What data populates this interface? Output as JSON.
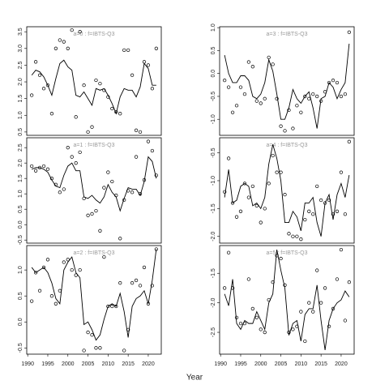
{
  "xlabel": "Year",
  "chart_data": [
    {
      "type": "scatter-line",
      "title": "a=0  :  f=IBTS-Q3",
      "x": [
        1991,
        1992,
        1993,
        1994,
        1995,
        1996,
        1997,
        1998,
        1999,
        2000,
        2001,
        2002,
        2003,
        2004,
        2005,
        2006,
        2007,
        2008,
        2009,
        2010,
        2011,
        2012,
        2013,
        2014,
        2015,
        2016,
        2017,
        2018,
        2019,
        2020,
        2021,
        2022
      ],
      "xlim": [
        1989.76,
        2023.24
      ],
      "ylim": [
        0.4,
        3.65
      ],
      "yticks": [
        0.5,
        {
          "value": 1,
          "label": "1.0"
        },
        1.5,
        {
          "value": 2,
          "label": "2.0"
        },
        2.5,
        {
          "value": 3,
          "label": "3.0"
        },
        3.5
      ],
      "series": [
        {
          "type": "points",
          "color": "#000000",
          "values": [
            1.6,
            2.6,
            2.2,
            1.8,
            1.9,
            1.05,
            3.0,
            3.25,
            3.2,
            3.0,
            3.55,
            0.95,
            3.5,
            1.9,
            0.5,
            0.65,
            2.05,
            1.95,
            1.75,
            1.55,
            1.2,
            1.1,
            1.05,
            2.95,
            2.95,
            2.2,
            0.55,
            0.5,
            2.6,
            2.5,
            1.8,
            3.0
          ]
        },
        {
          "type": "line",
          "color": "#000000",
          "values": [
            2.2,
            2.35,
            2.3,
            2.15,
            1.9,
            1.6,
            2.1,
            2.55,
            2.65,
            2.45,
            2.35,
            1.6,
            1.55,
            1.7,
            1.5,
            1.3,
            1.8,
            1.75,
            1.8,
            1.6,
            1.35,
            1.05,
            1.55,
            1.8,
            1.75,
            1.75,
            1.55,
            1.85,
            2.55,
            2.4,
            1.9,
            1.9
          ]
        }
      ]
    },
    {
      "type": "scatter-line",
      "title": "a=3  :  f=IBTS-Q3",
      "x": [
        1991,
        1992,
        1993,
        1994,
        1995,
        1996,
        1997,
        1998,
        1999,
        2000,
        2001,
        2002,
        2003,
        2004,
        2005,
        2006,
        2007,
        2008,
        2009,
        2010,
        2011,
        2012,
        2013,
        2014,
        2015,
        2016,
        2017,
        2018,
        2019,
        2020,
        2021,
        2022
      ],
      "xlim": [
        1989.76,
        2023.24
      ],
      "ylim": [
        -1.35,
        1.02
      ],
      "yticks": [
        {
          "value": -1,
          "label": "-1.0"
        },
        -0.5,
        {
          "value": 0,
          "label": "0.0"
        },
        0.5,
        {
          "value": 1,
          "label": "1.0"
        }
      ],
      "series": [
        {
          "type": "points",
          "color": "#000000",
          "values": [
            -0.15,
            -0.3,
            -0.85,
            -0.7,
            -0.3,
            -0.45,
            0.25,
            0.15,
            -0.6,
            -0.65,
            -0.55,
            0.35,
            0.2,
            -0.55,
            -1.15,
            -1.25,
            -0.8,
            -1.2,
            -0.7,
            -0.85,
            -0.5,
            -0.55,
            -0.45,
            -0.5,
            -0.6,
            -0.4,
            -0.2,
            -0.15,
            -0.2,
            -0.5,
            -0.45,
            0.9
          ]
        },
        {
          "type": "line",
          "color": "#000000",
          "values": [
            0.4,
            0.0,
            -0.2,
            -0.2,
            -0.05,
            -0.05,
            -0.15,
            -0.5,
            -0.55,
            -0.45,
            -0.2,
            0.3,
            0.05,
            -0.45,
            -1.0,
            -1.0,
            -0.75,
            -0.35,
            -0.55,
            -0.65,
            -0.5,
            -0.4,
            -0.75,
            -1.2,
            -0.55,
            -0.5,
            -0.2,
            -0.3,
            -0.55,
            -0.35,
            -0.2,
            0.65
          ]
        }
      ]
    },
    {
      "type": "scatter-line",
      "title": "a=1  :  f=IBTS-Q3",
      "x": [
        1991,
        1992,
        1993,
        1994,
        1995,
        1996,
        1997,
        1998,
        1999,
        2000,
        2001,
        2002,
        2003,
        2004,
        2005,
        2006,
        2007,
        2008,
        2009,
        2010,
        2011,
        2012,
        2013,
        2014,
        2015,
        2016,
        2017,
        2018,
        2019,
        2020,
        2021,
        2022
      ],
      "xlim": [
        1989.76,
        2023.24
      ],
      "ylim": [
        -0.6,
        2.82
      ],
      "yticks": [
        -0.5,
        {
          "value": 0,
          "label": "0.0"
        },
        0.5,
        {
          "value": 1,
          "label": "1.0"
        },
        1.5,
        {
          "value": 2,
          "label": "2.0"
        },
        2.5
      ],
      "series": [
        {
          "type": "points",
          "color": "#000000",
          "values": [
            1.9,
            1.75,
            1.85,
            1.9,
            1.8,
            1.5,
            1.3,
            1.05,
            1.15,
            2.5,
            2.2,
            2.0,
            2.35,
            0.85,
            0.3,
            0.35,
            0.45,
            -0.2,
            1.2,
            1.7,
            1.4,
            0.95,
            -0.45,
            0.8,
            1.1,
            1.05,
            2.2,
            1.0,
            1.45,
            2.7,
            2.4,
            1.6
          ]
        },
        {
          "type": "line",
          "color": "#000000",
          "values": [
            1.8,
            1.85,
            1.85,
            1.8,
            1.7,
            1.45,
            1.25,
            1.2,
            1.6,
            1.9,
            2.0,
            1.75,
            1.75,
            0.9,
            0.85,
            0.95,
            0.8,
            0.7,
            0.9,
            1.3,
            1.05,
            0.9,
            0.45,
            0.85,
            1.2,
            1.15,
            1.15,
            0.95,
            1.4,
            2.2,
            2.05,
            1.5
          ]
        }
      ]
    },
    {
      "type": "scatter-line",
      "title": "a=4  :  f=IBTS-Q3",
      "x": [
        1991,
        1992,
        1993,
        1994,
        1995,
        1996,
        1997,
        1998,
        1999,
        2000,
        2001,
        2002,
        2003,
        2004,
        2005,
        2006,
        2007,
        2008,
        2009,
        2010,
        2011,
        2012,
        2013,
        2014,
        2015,
        2016,
        2017,
        2018,
        2019,
        2020,
        2021,
        2022
      ],
      "xlim": [
        1989.76,
        2023.24
      ],
      "ylim": [
        -2.12,
        -0.23
      ],
      "yticks": [
        {
          "value": -2,
          "label": "-2.0"
        },
        -1.5,
        {
          "value": -1,
          "label": "-1.0"
        },
        -0.5
      ],
      "series": [
        {
          "type": "points",
          "color": "#000000",
          "values": [
            -1.2,
            -0.6,
            -1.4,
            -1.65,
            -1.55,
            -1.05,
            -1.3,
            -1.1,
            -1.45,
            -1.75,
            -1.5,
            -1.05,
            -0.55,
            -0.85,
            -0.85,
            -1.25,
            -1.95,
            -2.0,
            -2.0,
            -2.05,
            -1.7,
            -1.55,
            -1.6,
            -1.1,
            -1.35,
            -1.4,
            -1.35,
            -1.6,
            -1.55,
            -0.85,
            -1.6,
            -0.3
          ]
        },
        {
          "type": "line",
          "color": "#000000",
          "values": [
            -1.3,
            -0.8,
            -1.4,
            -1.35,
            -1.1,
            -1.05,
            -1.1,
            -1.45,
            -1.4,
            -1.5,
            -1.3,
            -0.7,
            -0.35,
            -0.6,
            -1.0,
            -1.75,
            -1.75,
            -1.55,
            -1.65,
            -1.9,
            -1.4,
            -1.4,
            -1.3,
            -1.75,
            -2.0,
            -1.4,
            -1.25,
            -1.7,
            -1.25,
            -1.05,
            -1.3,
            -0.9
          ]
        }
      ]
    },
    {
      "type": "scatter-line",
      "title": "a=2  :  f=IBTS-Q3",
      "x": [
        1991,
        1992,
        1993,
        1994,
        1995,
        1996,
        1997,
        1998,
        1999,
        2000,
        2001,
        2002,
        2003,
        2004,
        2005,
        2006,
        2007,
        2008,
        2009,
        2010,
        2011,
        2012,
        2013,
        2014,
        2015,
        2016,
        2017,
        2018,
        2019,
        2020,
        2021,
        2022
      ],
      "xlim": [
        1989.76,
        2023.24
      ],
      "xticks": [
        1990,
        1995,
        2000,
        2005,
        2010,
        2015,
        2020
      ],
      "ylim": [
        -0.62,
        1.47
      ],
      "yticks": [
        -0.5,
        {
          "value": 0,
          "label": "0.0"
        },
        0.5,
        {
          "value": 1,
          "label": "1.0"
        }
      ],
      "series": [
        {
          "type": "points",
          "color": "#000000",
          "values": [
            0.4,
            0.95,
            0.6,
            1.05,
            1.2,
            0.5,
            0.35,
            0.6,
            1.15,
            1.2,
            1.0,
            0.9,
            1.0,
            -0.55,
            -0.2,
            -0.25,
            -0.5,
            -0.5,
            1.25,
            0.3,
            0.3,
            0.3,
            0.75,
            -0.55,
            -0.15,
            0.75,
            0.8,
            0.7,
            1.05,
            0.35,
            0.7,
            1.4
          ]
        },
        {
          "type": "line",
          "color": "#000000",
          "values": [
            1.05,
            0.95,
            1.0,
            1.05,
            0.95,
            0.75,
            0.45,
            0.35,
            1.0,
            1.15,
            1.25,
            0.95,
            0.85,
            -0.05,
            0.0,
            -0.15,
            -0.35,
            -0.25,
            0.05,
            0.3,
            0.35,
            0.3,
            0.55,
            0.2,
            -0.3,
            0.3,
            0.45,
            0.5,
            0.6,
            0.35,
            0.8,
            1.4
          ]
        }
      ]
    },
    {
      "type": "scatter-line",
      "title": "a=5  :  f=IBTS-Q3",
      "x": [
        1991,
        1992,
        1993,
        1994,
        1995,
        1996,
        1997,
        1998,
        1999,
        2000,
        2001,
        2002,
        2003,
        2004,
        2005,
        2006,
        2007,
        2008,
        2009,
        2010,
        2011,
        2012,
        2013,
        2014,
        2015,
        2016,
        2017,
        2018,
        2019,
        2020,
        2021,
        2022
      ],
      "xlim": [
        1989.76,
        2023.24
      ],
      "xticks": [
        1990,
        1995,
        2000,
        2005,
        2010,
        2015,
        2020
      ],
      "ylim": [
        -2.87,
        -1.03
      ],
      "yticks": [
        -2.5,
        {
          "value": -2,
          "label": "-2.0"
        },
        -1.5
      ],
      "series": [
        {
          "type": "points",
          "color": "#000000",
          "values": [
            -1.75,
            -1.15,
            -1.75,
            -2.25,
            -2.35,
            -2.35,
            -1.6,
            -2.1,
            -2.25,
            -2.45,
            -2.5,
            -1.95,
            -1.65,
            -1.2,
            -1.25,
            -1.7,
            -2.5,
            -2.45,
            -2.4,
            -2.15,
            -2.65,
            -2.0,
            -2.15,
            -1.45,
            -2.0,
            -1.75,
            -2.4,
            -2.1,
            -1.6,
            -1.1,
            -2.3,
            -1.65
          ]
        },
        {
          "type": "line",
          "color": "#000000",
          "values": [
            -1.85,
            -2.05,
            -1.6,
            -2.35,
            -2.45,
            -2.3,
            -2.35,
            -2.35,
            -2.15,
            -2.3,
            -2.45,
            -2.0,
            -1.85,
            -1.1,
            -1.45,
            -1.75,
            -2.55,
            -2.35,
            -2.3,
            -2.65,
            -2.2,
            -2.1,
            -2.1,
            -1.7,
            -2.3,
            -2.8,
            -2.3,
            -2.1,
            -2.0,
            -1.95,
            -1.8,
            -1.9
          ]
        }
      ]
    }
  ]
}
